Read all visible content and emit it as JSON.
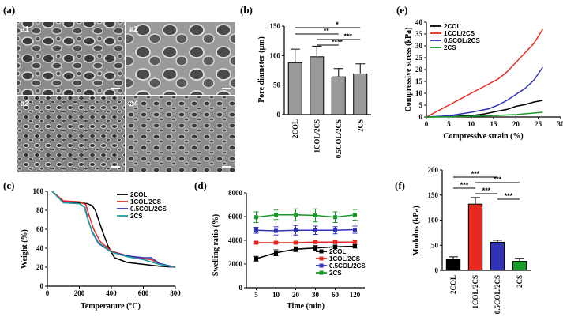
{
  "panels": {
    "a": {
      "label": "(a)",
      "images": [
        "a1",
        "a2",
        "a3",
        "a4"
      ]
    },
    "b": {
      "label": "(b)",
      "ylabel": "Pore diameter (μm)",
      "significance": [
        "*",
        "**",
        "***",
        "****"
      ]
    },
    "c": {
      "label": "(c)",
      "xlabel": "Temperature (°C)",
      "ylabel": "Weight (%)"
    },
    "d": {
      "label": "(d)",
      "xlabel": "Time (min)",
      "ylabel": "Swelling ratio (%)"
    },
    "e": {
      "label": "(e)",
      "xlabel": "Compressive strain (%)",
      "ylabel": "Compressive stress (kPa)"
    },
    "f": {
      "label": "(f)",
      "ylabel": "Modulus (kPa)",
      "significance": [
        "***",
        "***",
        "***",
        "***",
        "***"
      ]
    }
  },
  "colors": {
    "2COL": "#000000",
    "1COL/2CS": "#e8291f",
    "0.5COL/2CS": "#3232b4",
    "2CS": "#1a9a2a",
    "2CS_tga": "#1aa0a0",
    "bar_gray": "#9a9a9a"
  },
  "chart_data": [
    {
      "panel": "b",
      "type": "bar",
      "categories": [
        "2COL",
        "1COL/2CS",
        "0.5COL/2CS",
        "2CS"
      ],
      "values": [
        88,
        98,
        64,
        69
      ],
      "errors": [
        23,
        18,
        14,
        17
      ],
      "ylabel": "Pore diameter (μm)",
      "ylim": [
        0,
        150
      ],
      "yticks": [
        0,
        50,
        100,
        150
      ]
    },
    {
      "panel": "e",
      "type": "line",
      "xlabel": "Compressive strain (%)",
      "ylabel": "Compressive stress (kPa)",
      "xlim": [
        0,
        30
      ],
      "ylim": [
        0,
        40
      ],
      "xticks": [
        0,
        5,
        10,
        15,
        20,
        25,
        30
      ],
      "yticks": [
        0,
        5,
        10,
        15,
        20,
        25,
        30,
        35,
        40
      ],
      "legend": "top-left",
      "series": [
        {
          "name": "2COL",
          "x": [
            0,
            5,
            10,
            13,
            16,
            18,
            20,
            22,
            24,
            26
          ],
          "y": [
            0,
            0.2,
            0.6,
            1.3,
            2.5,
            3.2,
            4.5,
            5.2,
            6.3,
            7.0
          ]
        },
        {
          "name": "1COL/2CS",
          "x": [
            0,
            2,
            4,
            6,
            8,
            10,
            12,
            14,
            16,
            18,
            20,
            22,
            24,
            26
          ],
          "y": [
            0,
            2,
            4,
            6,
            8,
            10,
            12,
            14,
            16,
            19,
            23,
            27,
            31,
            37
          ]
        },
        {
          "name": "0.5COL/2CS",
          "x": [
            0,
            5,
            10,
            14,
            16,
            18,
            20,
            22,
            24,
            26
          ],
          "y": [
            0,
            0.5,
            2,
            3.5,
            5,
            7,
            9.5,
            12,
            15.5,
            21
          ]
        },
        {
          "name": "2CS",
          "x": [
            0,
            5,
            10,
            15,
            20,
            23,
            26
          ],
          "y": [
            0,
            0.1,
            0.3,
            0.6,
            1.0,
            1.5,
            2.0
          ]
        }
      ]
    },
    {
      "panel": "c",
      "type": "line",
      "xlabel": "Temperature (°C)",
      "ylabel": "Weight (%)",
      "xlim": [
        0,
        800
      ],
      "ylim": [
        0,
        100
      ],
      "xticks": [
        0,
        200,
        400,
        600,
        800
      ],
      "yticks": [
        0,
        20,
        40,
        60,
        80,
        100
      ],
      "legend": "top-right",
      "series": [
        {
          "name": "2COL",
          "x": [
            30,
            100,
            200,
            250,
            280,
            300,
            340,
            380,
            420,
            500,
            600,
            700,
            800
          ],
          "y": [
            100,
            89,
            88,
            87,
            85,
            80,
            60,
            42,
            30,
            25,
            23,
            21,
            20
          ]
        },
        {
          "name": "1COL/2CS",
          "x": [
            30,
            100,
            200,
            240,
            260,
            290,
            330,
            400,
            500,
            600,
            650,
            700,
            800
          ],
          "y": [
            100,
            90,
            89,
            86,
            75,
            60,
            47,
            37,
            32,
            29,
            28,
            23,
            20
          ]
        },
        {
          "name": "0.5COL/2CS",
          "x": [
            30,
            100,
            200,
            235,
            255,
            280,
            320,
            400,
            500,
            600,
            650,
            700,
            800
          ],
          "y": [
            100,
            88,
            87,
            83,
            70,
            57,
            45,
            36,
            32,
            30,
            30,
            24,
            20
          ]
        },
        {
          "name": "2CS",
          "x": [
            30,
            100,
            200,
            230,
            250,
            280,
            320,
            400,
            500,
            600,
            700,
            800
          ],
          "y": [
            100,
            88,
            87,
            84,
            72,
            58,
            46,
            36,
            31,
            28,
            23,
            20
          ]
        }
      ]
    },
    {
      "panel": "d",
      "type": "line",
      "xlabel": "Time (min)",
      "ylabel": "Swelling ratio (%)",
      "categories": [
        "5",
        "10",
        "20",
        "30",
        "60",
        "120"
      ],
      "ylim": [
        0,
        8000
      ],
      "yticks": [
        0,
        2000,
        4000,
        6000,
        8000
      ],
      "legend": "bottom-right",
      "series": [
        {
          "name": "2COL",
          "values": [
            2450,
            2950,
            3250,
            3350,
            3450,
            3500
          ],
          "errors": [
            200,
            250,
            200,
            200,
            150,
            150
          ]
        },
        {
          "name": "1COL/2CS",
          "values": [
            3800,
            3800,
            3800,
            3850,
            3850,
            3850
          ],
          "errors": [
            100,
            100,
            100,
            100,
            100,
            100
          ]
        },
        {
          "name": "0.5COL/2CS",
          "values": [
            4850,
            4800,
            4850,
            4850,
            4850,
            4900
          ],
          "errors": [
            250,
            350,
            400,
            350,
            300,
            300
          ]
        },
        {
          "name": "2CS",
          "values": [
            5950,
            6150,
            6150,
            6100,
            5950,
            6150
          ],
          "errors": [
            450,
            400,
            500,
            550,
            450,
            450
          ]
        }
      ]
    },
    {
      "panel": "f",
      "type": "bar",
      "categories": [
        "2COL",
        "1COL/2CS",
        "0.5COL/2CS",
        "2CS"
      ],
      "values": [
        22,
        132,
        56,
        18
      ],
      "errors": [
        5,
        13,
        4,
        6
      ],
      "ylabel": "Modulus (kPa)",
      "ylim": [
        0,
        200
      ],
      "yticks": [
        0,
        50,
        100,
        150,
        200
      ]
    }
  ]
}
